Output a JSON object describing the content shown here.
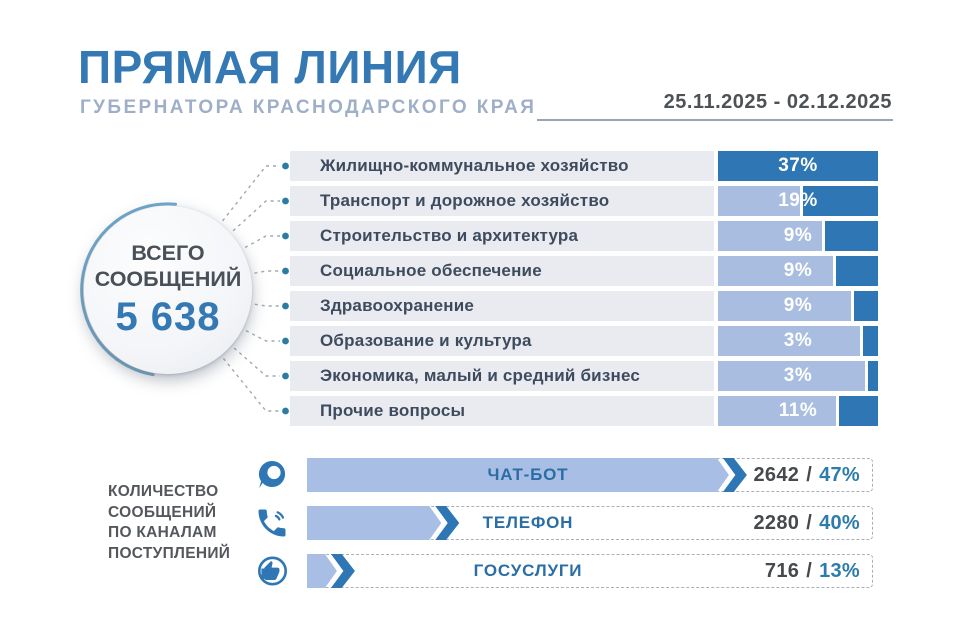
{
  "header": {
    "title": "ПРЯМАЯ ЛИНИЯ",
    "subtitle": "ГУБЕРНАТОРА КРАСНОДАРСКОГО КРАЯ",
    "date_range": "25.11.2025 - 02.12.2025"
  },
  "total_badge": {
    "label": "ВСЕГО СООБЩЕНИЙ",
    "value": "5 638"
  },
  "channels_caption": {
    "lines": [
      "КОЛИЧЕСТВО",
      "СООБЩЕНИЙ",
      "ПО КАНАЛАМ",
      "ПОСТУПЛЕНИЙ"
    ]
  },
  "colors": {
    "primary_blue": "#3579b4",
    "dark_fill_blue": "#2e76b4",
    "light_bar_blue": "#a9bee4",
    "row_bg_gray": "#e9ebf0",
    "subtitle_gray_blue": "#9fafc8",
    "dark_text_gray": "#4d5257",
    "label_navy": "#3e4b5e",
    "dot_teal": "#2a7ca3",
    "percent_teal": "#2e7cab"
  },
  "chart_data": [
    {
      "type": "bar",
      "title": "",
      "unit": "%",
      "categories": [
        "Жилищно-коммунальное хозяйство",
        "Транспорт и дорожное хозяйство",
        "Строительство и архитектура",
        "Социальное обеспечение",
        "Здравоохранение",
        "Образование и культура",
        "Экономика, малый и средний бизнес",
        "Прочие вопросы"
      ],
      "values": [
        37,
        19,
        9,
        9,
        9,
        3,
        3,
        11
      ],
      "value_labels": [
        "37%",
        "19%",
        "9%",
        "9%",
        "9%",
        "3%",
        "3%",
        "11%"
      ],
      "accent_fill_fractions": [
        1.0,
        0.49,
        0.35,
        0.28,
        0.17,
        0.11,
        0.08,
        0.26
      ],
      "total": 5638,
      "legend": "off",
      "grid": "off"
    },
    {
      "type": "bar",
      "title": "",
      "categories": [
        "ЧАТ-БОТ",
        "ТЕЛЕФОН",
        "ГОСУСЛУГИ"
      ],
      "series": [
        {
          "name": "count",
          "values": [
            2642,
            2280,
            716
          ]
        },
        {
          "name": "percent",
          "values": [
            47,
            40,
            13
          ]
        }
      ],
      "value_labels": [
        "2642 / 47%",
        "2280 / 40%",
        "716 / 13%"
      ],
      "bar_fractions": [
        0.78,
        0.27,
        0.085
      ],
      "icons": [
        "chat-bubble-icon",
        "phone-handset-icon",
        "gosuslugi-thumb-up-icon"
      ],
      "legend": "off",
      "grid": "off"
    }
  ]
}
